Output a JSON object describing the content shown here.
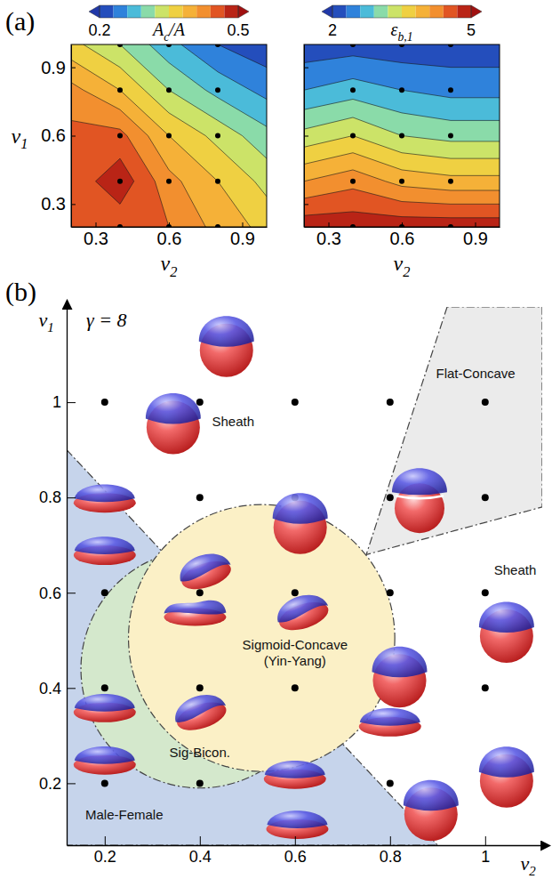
{
  "chart_data": [
    {
      "type": "contour",
      "panel_label": "(a)",
      "x": [
        0.2,
        0.4,
        0.6,
        0.8,
        1.0
      ],
      "y": [
        0.2,
        0.4,
        0.6,
        0.8,
        1.0
      ],
      "z": [
        [
          0.45,
          0.45,
          0.44,
          0.4,
          0.37
        ],
        [
          0.45,
          0.49,
          0.42,
          0.38,
          0.34
        ],
        [
          0.45,
          0.45,
          0.38,
          0.34,
          0.3
        ],
        [
          0.42,
          0.38,
          0.32,
          0.28,
          0.25
        ],
        [
          0.36,
          0.32,
          0.27,
          0.23,
          0.21
        ]
      ],
      "levels": [
        0.2,
        0.23,
        0.26,
        0.29,
        0.32,
        0.35,
        0.38,
        0.41,
        0.44,
        0.47,
        0.5
      ],
      "colorbar": {
        "label": {
          "base": "A",
          "sub": "c",
          "tail": "/A"
        },
        "range": [
          0.2,
          0.5
        ],
        "ticks": [
          0.2,
          0.5
        ]
      },
      "points": {
        "x": [
          0.4,
          0.6,
          0.8,
          0.4,
          0.6,
          0.8,
          0.4,
          0.6,
          0.8,
          0.4,
          0.6,
          0.8,
          0.4,
          0.6,
          0.8
        ],
        "y": [
          0.2,
          0.2,
          0.2,
          0.4,
          0.4,
          0.4,
          0.6,
          0.6,
          0.6,
          0.8,
          0.8,
          0.8,
          1.0,
          1.0,
          1.0
        ]
      },
      "xlabel": {
        "base": "ν",
        "sub": "2"
      },
      "ylabel": {
        "base": "ν",
        "sub": "1"
      },
      "xlim": [
        0.2,
        1.0
      ],
      "ylim": [
        0.2,
        1.0
      ],
      "xticks": [
        0.3,
        0.6,
        0.9
      ],
      "yticks": [
        0.3,
        0.6,
        0.9
      ]
    },
    {
      "type": "contour",
      "x": [
        0.2,
        0.4,
        0.6,
        0.8,
        1.0
      ],
      "y": [
        0.2,
        0.4,
        0.6,
        0.8,
        1.0
      ],
      "z": [
        [
          4.9,
          4.9,
          4.9,
          4.9,
          4.9
        ],
        [
          4.1,
          4.3,
          4.0,
          3.9,
          3.9
        ],
        [
          3.3,
          3.5,
          3.2,
          3.1,
          3.1
        ],
        [
          2.6,
          2.75,
          2.6,
          2.5,
          2.5
        ],
        [
          2.1,
          2.15,
          2.1,
          2.1,
          2.1
        ]
      ],
      "levels": [
        2,
        2.3,
        2.6,
        2.9,
        3.2,
        3.5,
        3.8,
        4.1,
        4.4,
        4.7,
        5
      ],
      "colorbar": {
        "label": {
          "base": "ε",
          "sub": "b,1"
        },
        "range": [
          2,
          5
        ],
        "ticks": [
          2,
          5
        ]
      },
      "points": {
        "x": [
          0.4,
          0.6,
          0.8,
          0.4,
          0.6,
          0.8,
          0.4,
          0.6,
          0.8,
          0.4,
          0.6,
          0.8,
          0.4,
          0.6,
          0.8
        ],
        "y": [
          0.2,
          0.2,
          0.2,
          0.4,
          0.4,
          0.4,
          0.6,
          0.6,
          0.6,
          0.8,
          0.8,
          0.8,
          1.0,
          1.0,
          1.0
        ]
      },
      "xlabel": {
        "base": "ν",
        "sub": "2"
      },
      "xlim": [
        0.2,
        1.0
      ],
      "ylim": [
        0.2,
        1.0
      ],
      "xticks": [
        0.3,
        0.6,
        0.9
      ],
      "yticks": [
        0.3,
        0.6,
        0.9
      ],
      "tick_labels": "x"
    },
    {
      "type": "phase",
      "panel_label": "(b)",
      "title": "γ = 8",
      "xlabel": {
        "base": "ν",
        "sub": "2"
      },
      "ylabel": {
        "base": "ν",
        "sub": "1"
      },
      "xlim": [
        0.12,
        1.12
      ],
      "ylim": [
        0.07,
        1.2
      ],
      "xticks": [
        0.2,
        0.4,
        0.6,
        0.8,
        1
      ],
      "yticks": [
        0.2,
        0.4,
        0.6,
        0.8,
        1
      ],
      "regions": [
        {
          "label": "Male-Female",
          "color": "#c6d4eb",
          "polygon": [
            [
              0.12,
              0.9
            ],
            [
              0.9,
              0.07
            ],
            [
              0.12,
              0.07
            ]
          ],
          "label_at": [
            0.241,
            0.124
          ]
        },
        {
          "label": "Flat-Concave",
          "color": "#ebebeb",
          "polygon": [
            [
              0.92,
              1.2
            ],
            [
              0.75,
              0.68
            ],
            [
              1.12,
              0.78
            ],
            [
              1.12,
              1.2
            ]
          ],
          "label_at": [
            0.98,
            1.05
          ]
        },
        {
          "label": "Sig-Bicon.",
          "color": "#d4e8cc",
          "center": [
            0.4,
            0.44
          ],
          "radius": 0.25,
          "label_at": [
            0.4,
            0.255
          ]
        },
        {
          "label": "Sigmoid-Concave (Yin-Yang)",
          "color": "#fbf0c6",
          "center": [
            0.53,
            0.505
          ],
          "radius": 0.28,
          "label_at": [
            0.6,
            0.48
          ]
        }
      ],
      "annotations": [
        {
          "text": "Sheath",
          "x": 0.47,
          "y": 0.95
        },
        {
          "text": "Sheath",
          "x": 1.063,
          "y": 0.638
        }
      ],
      "points": {
        "x": [
          0.2,
          0.4,
          0.6,
          0.8,
          1,
          0.2,
          0.4,
          0.6,
          0.8,
          1,
          0.2,
          0.4,
          0.6,
          0.8,
          1,
          0.2,
          0.4,
          0.6,
          0.8,
          1,
          0.2,
          0.4,
          0.6,
          0.8,
          1
        ],
        "y": [
          0.2,
          0.2,
          0.2,
          0.2,
          0.2,
          0.4,
          0.4,
          0.4,
          0.4,
          0.4,
          0.6,
          0.6,
          0.6,
          0.6,
          0.6,
          0.8,
          0.8,
          0.8,
          0.8,
          0.8,
          1,
          1,
          1,
          1,
          1
        ]
      },
      "droplets": [
        {
          "x": 0.456,
          "y": 1.124,
          "morphology": "Sheath"
        },
        {
          "x": 0.344,
          "y": 0.962,
          "morphology": "Sheath"
        },
        {
          "x": 0.611,
          "y": 0.752,
          "morphology": "Sheath"
        },
        {
          "x": 0.862,
          "y": 0.8,
          "morphology": "Flat-Concave"
        },
        {
          "x": 1.045,
          "y": 0.524,
          "morphology": "Sheath"
        },
        {
          "x": 0.2,
          "y": 0.8,
          "morphology": "Male-Female"
        },
        {
          "x": 0.2,
          "y": 0.69,
          "morphology": "Male-Female"
        },
        {
          "x": 0.41,
          "y": 0.648,
          "morphology": "Sigmoid-Concave"
        },
        {
          "x": 0.39,
          "y": 0.562,
          "morphology": "Sig-Bicon."
        },
        {
          "x": 0.615,
          "y": 0.562,
          "morphology": "Sigmoid-Concave"
        },
        {
          "x": 0.4,
          "y": 0.352,
          "morphology": "Sigmoid-Concave"
        },
        {
          "x": 0.82,
          "y": 0.43,
          "morphology": "Sheath"
        },
        {
          "x": 0.8,
          "y": 0.33,
          "morphology": "Male-Female"
        },
        {
          "x": 0.2,
          "y": 0.36,
          "morphology": "Male-Female"
        },
        {
          "x": 0.2,
          "y": 0.25,
          "morphology": "Male-Female"
        },
        {
          "x": 0.6,
          "y": 0.22,
          "morphology": "Male-Female"
        },
        {
          "x": 0.605,
          "y": 0.115,
          "morphology": "Male-Female"
        },
        {
          "x": 1.045,
          "y": 0.22,
          "morphology": "Sheath"
        },
        {
          "x": 0.886,
          "y": 0.15,
          "morphology": "Sheath"
        }
      ]
    }
  ]
}
